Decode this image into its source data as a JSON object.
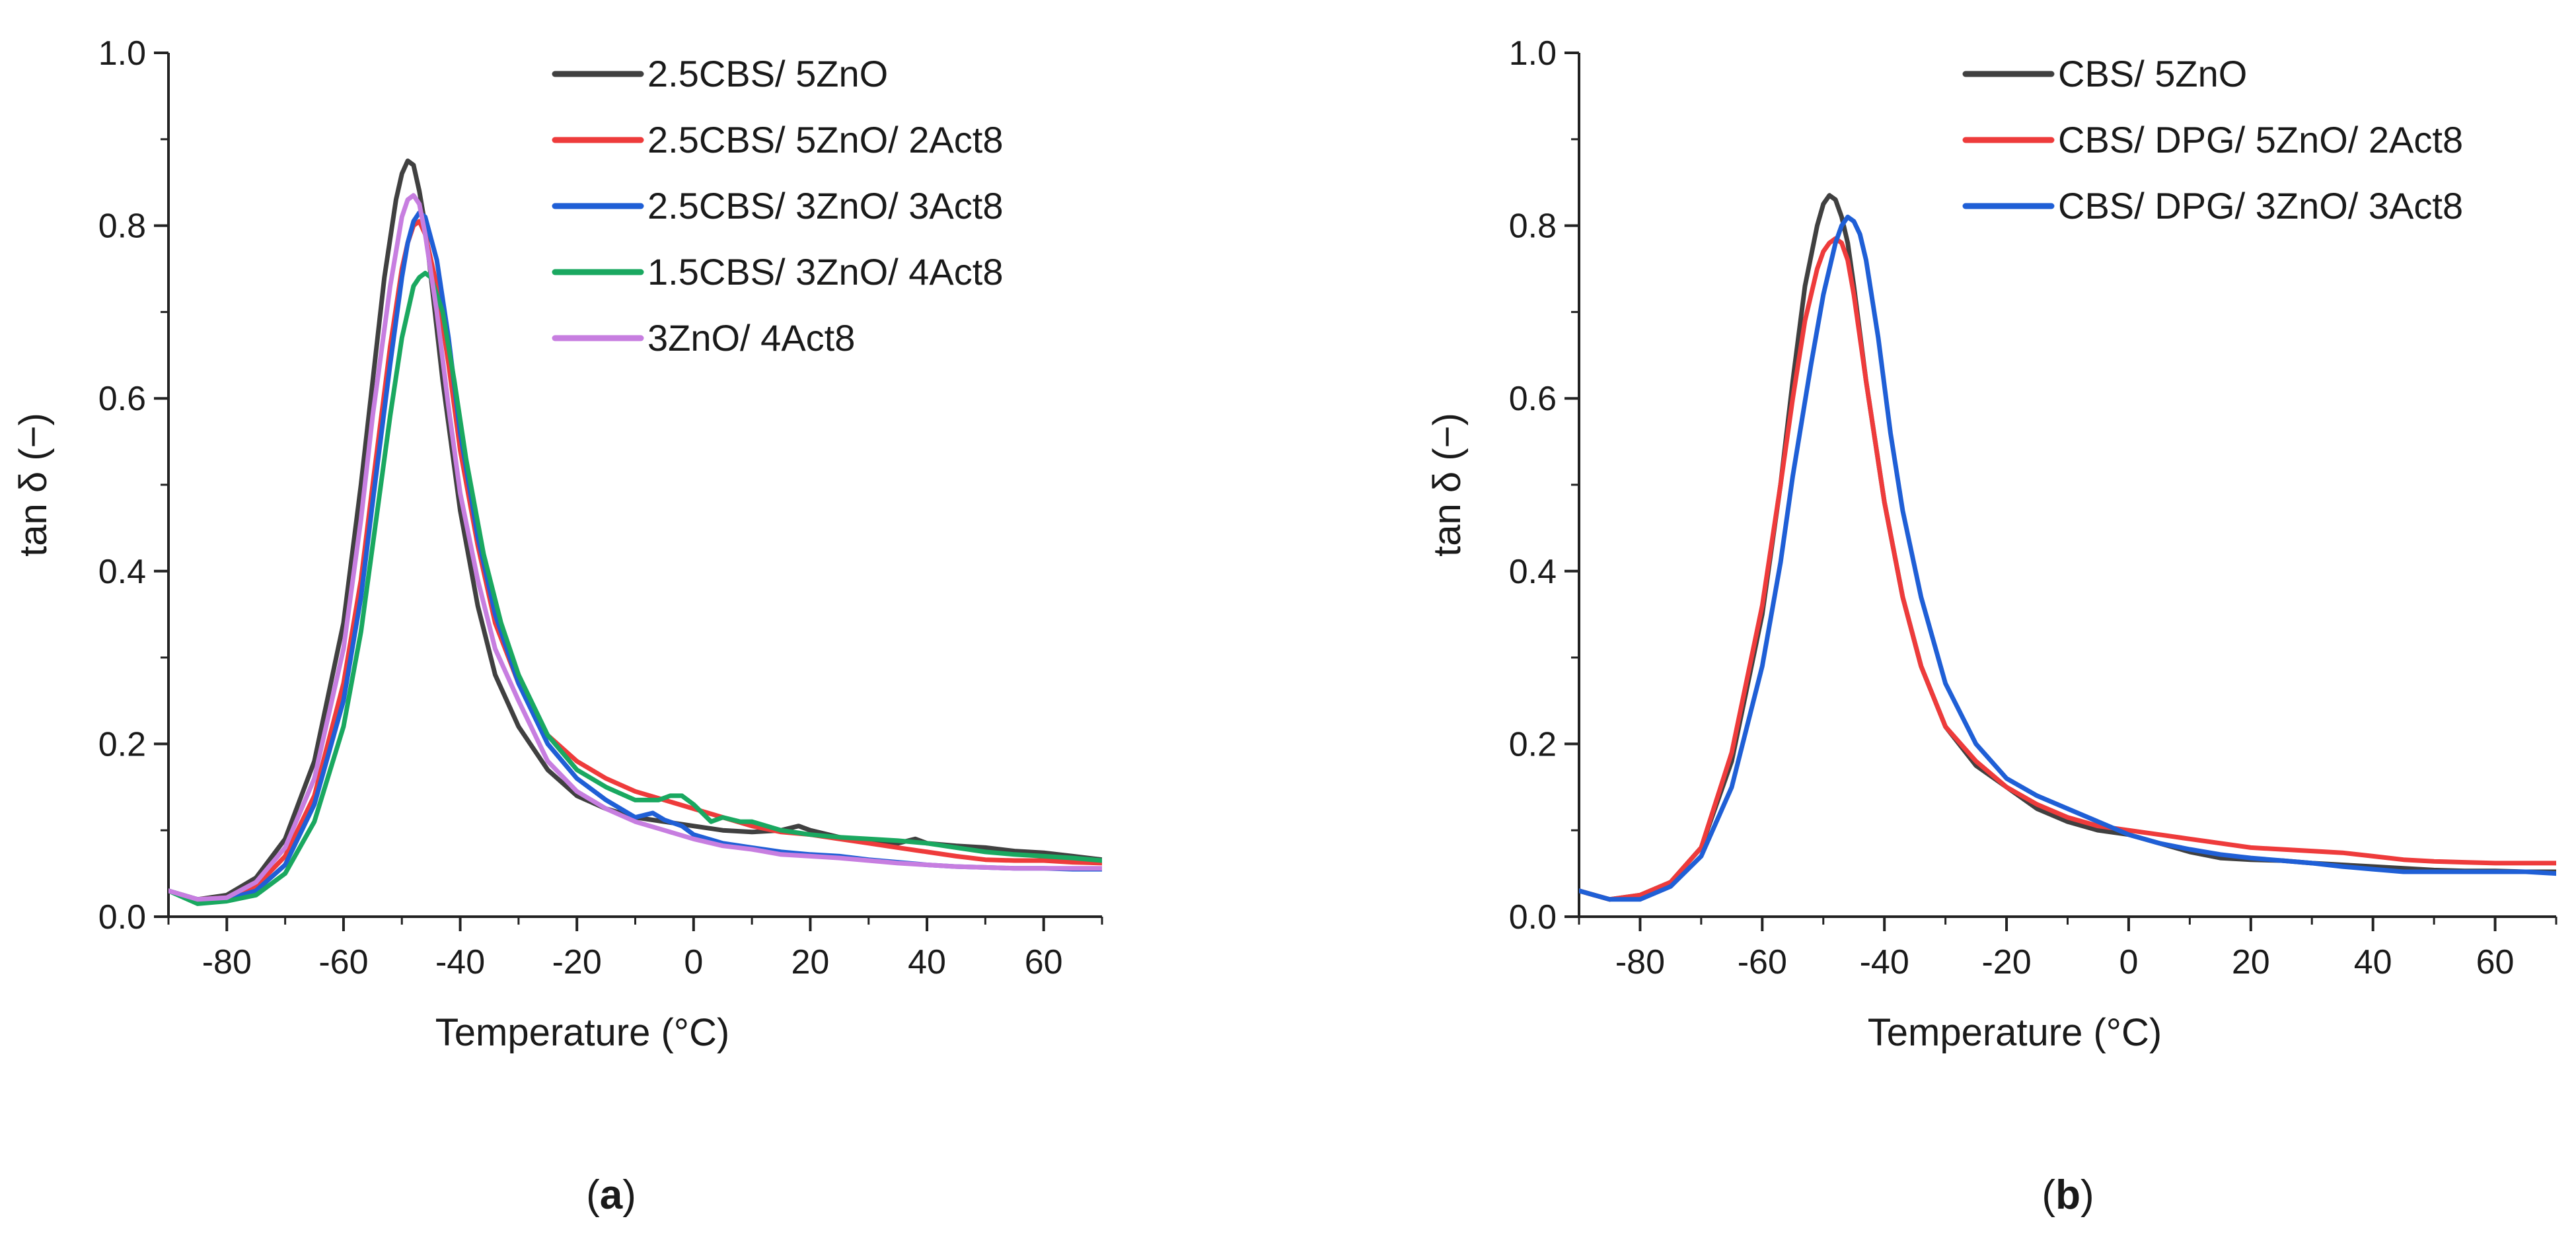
{
  "chart_data": [
    {
      "type": "line",
      "panel_label": "(a)",
      "panel_letter": "a",
      "xlabel": "Temperature (°C)",
      "ylabel": "tan δ (−)",
      "xlim": [
        -90,
        70
      ],
      "ylim": [
        0.0,
        1.0
      ],
      "xticks": [
        -80,
        -60,
        -40,
        -20,
        0,
        20,
        40,
        60
      ],
      "xtick_labels": [
        "-80",
        "-60",
        "-40",
        "-20",
        "0",
        "20",
        "40",
        "60"
      ],
      "yticks": [
        0.0,
        0.2,
        0.4,
        0.6,
        0.8,
        1.0
      ],
      "ytick_labels": [
        "0.0",
        "0.2",
        "0.4",
        "0.6",
        "0.8",
        "1.0"
      ],
      "legend_position": "top-right",
      "series": [
        {
          "name": "2.5CBS/ 5ZnO",
          "color": "#404040",
          "x": [
            -90,
            -85,
            -80,
            -75,
            -70,
            -65,
            -60,
            -57,
            -55,
            -53,
            -51,
            -50,
            -49,
            -48,
            -47,
            -46,
            -45,
            -43,
            -40,
            -37,
            -34,
            -30,
            -25,
            -20,
            -15,
            -10,
            -5,
            0,
            5,
            10,
            15,
            18,
            20,
            25,
            30,
            35,
            38,
            40,
            45,
            50,
            55,
            60,
            65,
            70
          ],
          "y": [
            0.03,
            0.02,
            0.025,
            0.045,
            0.09,
            0.18,
            0.34,
            0.5,
            0.62,
            0.74,
            0.83,
            0.86,
            0.875,
            0.87,
            0.84,
            0.8,
            0.74,
            0.62,
            0.47,
            0.36,
            0.28,
            0.22,
            0.17,
            0.14,
            0.125,
            0.115,
            0.11,
            0.105,
            0.1,
            0.098,
            0.1,
            0.105,
            0.1,
            0.092,
            0.088,
            0.085,
            0.09,
            0.085,
            0.082,
            0.08,
            0.076,
            0.074,
            0.07,
            0.066
          ]
        },
        {
          "name": "2.5CBS/ 5ZnO/ 2Act8",
          "color": "#ee3b3b",
          "x": [
            -90,
            -85,
            -80,
            -75,
            -70,
            -65,
            -60,
            -57,
            -55,
            -52,
            -50,
            -49,
            -48,
            -47,
            -46,
            -44,
            -42,
            -40,
            -37,
            -34,
            -30,
            -25,
            -20,
            -15,
            -10,
            -5,
            0,
            5,
            10,
            15,
            20,
            25,
            30,
            35,
            40,
            45,
            50,
            55,
            60,
            65,
            70
          ],
          "y": [
            0.03,
            0.02,
            0.022,
            0.035,
            0.07,
            0.14,
            0.27,
            0.39,
            0.5,
            0.66,
            0.75,
            0.78,
            0.8,
            0.805,
            0.79,
            0.73,
            0.64,
            0.54,
            0.43,
            0.34,
            0.27,
            0.21,
            0.18,
            0.16,
            0.145,
            0.135,
            0.125,
            0.115,
            0.105,
            0.098,
            0.095,
            0.09,
            0.085,
            0.08,
            0.075,
            0.07,
            0.066,
            0.065,
            0.065,
            0.063,
            0.062
          ]
        },
        {
          "name": "2.5CBS/ 3ZnO/ 3Act8",
          "color": "#1f5fd6",
          "x": [
            -90,
            -85,
            -80,
            -75,
            -70,
            -65,
            -60,
            -57,
            -55,
            -52,
            -50,
            -49,
            -48,
            -47,
            -46,
            -44,
            -42,
            -40,
            -37,
            -34,
            -30,
            -25,
            -20,
            -15,
            -10,
            -7,
            -5,
            -2,
            0,
            5,
            10,
            15,
            20,
            25,
            30,
            35,
            40,
            45,
            50,
            55,
            60,
            65,
            70
          ],
          "y": [
            0.03,
            0.02,
            0.02,
            0.03,
            0.06,
            0.13,
            0.25,
            0.37,
            0.48,
            0.64,
            0.74,
            0.78,
            0.805,
            0.815,
            0.81,
            0.76,
            0.67,
            0.56,
            0.44,
            0.35,
            0.27,
            0.2,
            0.16,
            0.135,
            0.115,
            0.12,
            0.112,
            0.105,
            0.095,
            0.085,
            0.08,
            0.075,
            0.072,
            0.07,
            0.066,
            0.063,
            0.06,
            0.058,
            0.057,
            0.056,
            0.056,
            0.055,
            0.055
          ]
        },
        {
          "name": "1.5CBS/ 3ZnO/ 4Act8",
          "color": "#1aa860",
          "x": [
            -90,
            -85,
            -80,
            -75,
            -70,
            -65,
            -60,
            -57,
            -55,
            -52,
            -50,
            -48,
            -47,
            -46,
            -45,
            -43,
            -41,
            -39,
            -36,
            -33,
            -30,
            -25,
            -20,
            -15,
            -10,
            -6,
            -4,
            -2,
            0,
            3,
            5,
            8,
            10,
            15,
            20,
            25,
            30,
            35,
            40,
            45,
            50,
            55,
            60,
            65,
            70
          ],
          "y": [
            0.03,
            0.015,
            0.018,
            0.025,
            0.05,
            0.11,
            0.22,
            0.33,
            0.43,
            0.58,
            0.67,
            0.73,
            0.74,
            0.745,
            0.74,
            0.7,
            0.62,
            0.53,
            0.42,
            0.34,
            0.28,
            0.21,
            0.17,
            0.15,
            0.135,
            0.135,
            0.14,
            0.14,
            0.13,
            0.11,
            0.115,
            0.11,
            0.11,
            0.1,
            0.095,
            0.092,
            0.09,
            0.088,
            0.085,
            0.08,
            0.075,
            0.072,
            0.07,
            0.068,
            0.065
          ]
        },
        {
          "name": "3ZnO/ 4Act8",
          "color": "#c77ee0",
          "x": [
            -90,
            -85,
            -80,
            -75,
            -70,
            -65,
            -60,
            -57,
            -55,
            -52,
            -50,
            -49,
            -48,
            -47,
            -46,
            -44,
            -42,
            -40,
            -37,
            -34,
            -30,
            -25,
            -20,
            -15,
            -10,
            -5,
            0,
            5,
            10,
            15,
            20,
            25,
            30,
            35,
            40,
            45,
            50,
            55,
            60,
            65,
            70
          ],
          "y": [
            0.03,
            0.02,
            0.022,
            0.04,
            0.08,
            0.16,
            0.31,
            0.46,
            0.58,
            0.73,
            0.81,
            0.83,
            0.835,
            0.825,
            0.79,
            0.7,
            0.59,
            0.49,
            0.39,
            0.31,
            0.25,
            0.18,
            0.145,
            0.125,
            0.11,
            0.1,
            0.09,
            0.082,
            0.078,
            0.072,
            0.07,
            0.068,
            0.065,
            0.062,
            0.06,
            0.058,
            0.057,
            0.056,
            0.056,
            0.056,
            0.056
          ]
        }
      ]
    },
    {
      "type": "line",
      "panel_label": "(b)",
      "panel_letter": "b",
      "xlabel": "Temperature (°C)",
      "ylabel": "tan δ (−)",
      "xlim": [
        -90,
        70
      ],
      "ylim": [
        0.0,
        1.0
      ],
      "xticks": [
        -80,
        -60,
        -40,
        -20,
        0,
        20,
        40,
        60
      ],
      "xtick_labels": [
        "-80",
        "-60",
        "-40",
        "-20",
        "0",
        "20",
        "40",
        "60"
      ],
      "yticks": [
        0.0,
        0.2,
        0.4,
        0.6,
        0.8,
        1.0
      ],
      "ytick_labels": [
        "0.0",
        "0.2",
        "0.4",
        "0.6",
        "0.8",
        "1.0"
      ],
      "legend_position": "top-right",
      "series": [
        {
          "name": "CBS/ 5ZnO",
          "color": "#404040",
          "x": [
            -90,
            -85,
            -80,
            -75,
            -70,
            -65,
            -60,
            -57,
            -55,
            -53,
            -51,
            -50,
            -49,
            -48,
            -47,
            -46,
            -45,
            -43,
            -40,
            -37,
            -34,
            -30,
            -25,
            -20,
            -15,
            -10,
            -5,
            0,
            5,
            10,
            15,
            20,
            25,
            30,
            35,
            40,
            45,
            50,
            55,
            60,
            65,
            70
          ],
          "y": [
            0.03,
            0.02,
            0.025,
            0.04,
            0.08,
            0.18,
            0.35,
            0.5,
            0.62,
            0.73,
            0.8,
            0.825,
            0.835,
            0.83,
            0.81,
            0.78,
            0.73,
            0.62,
            0.48,
            0.37,
            0.29,
            0.22,
            0.175,
            0.15,
            0.125,
            0.11,
            0.1,
            0.095,
            0.085,
            0.075,
            0.068,
            0.066,
            0.065,
            0.062,
            0.06,
            0.058,
            0.056,
            0.054,
            0.053,
            0.053,
            0.052,
            0.052
          ]
        },
        {
          "name": "CBS/ DPG/ 5ZnO/ 2Act8",
          "color": "#ee3b3b",
          "x": [
            -90,
            -85,
            -80,
            -75,
            -70,
            -65,
            -60,
            -57,
            -55,
            -53,
            -51,
            -50,
            -49,
            -48,
            -47,
            -46,
            -45,
            -43,
            -40,
            -37,
            -34,
            -30,
            -25,
            -20,
            -15,
            -10,
            -5,
            0,
            5,
            10,
            15,
            20,
            25,
            30,
            35,
            40,
            45,
            50,
            55,
            60,
            65,
            70
          ],
          "y": [
            0.03,
            0.02,
            0.025,
            0.04,
            0.08,
            0.19,
            0.36,
            0.5,
            0.6,
            0.69,
            0.75,
            0.77,
            0.78,
            0.785,
            0.78,
            0.76,
            0.72,
            0.62,
            0.48,
            0.37,
            0.29,
            0.22,
            0.18,
            0.15,
            0.13,
            0.115,
            0.105,
            0.1,
            0.095,
            0.09,
            0.085,
            0.08,
            0.078,
            0.076,
            0.074,
            0.07,
            0.066,
            0.064,
            0.063,
            0.062,
            0.062,
            0.062
          ]
        },
        {
          "name": "CBS/ DPG/ 3ZnO/ 3Act8",
          "color": "#1f5fd6",
          "x": [
            -90,
            -85,
            -80,
            -75,
            -70,
            -65,
            -60,
            -57,
            -55,
            -52,
            -50,
            -48,
            -47,
            -46,
            -45,
            -44,
            -43,
            -41,
            -39,
            -37,
            -34,
            -30,
            -25,
            -20,
            -15,
            -10,
            -5,
            0,
            5,
            10,
            15,
            20,
            25,
            30,
            35,
            40,
            45,
            50,
            55,
            60,
            65,
            70
          ],
          "y": [
            0.03,
            0.02,
            0.02,
            0.035,
            0.07,
            0.15,
            0.29,
            0.41,
            0.51,
            0.64,
            0.72,
            0.78,
            0.8,
            0.81,
            0.805,
            0.79,
            0.76,
            0.67,
            0.56,
            0.47,
            0.37,
            0.27,
            0.2,
            0.16,
            0.14,
            0.125,
            0.11,
            0.095,
            0.085,
            0.078,
            0.072,
            0.068,
            0.065,
            0.062,
            0.058,
            0.055,
            0.052,
            0.052,
            0.052,
            0.052,
            0.052,
            0.05
          ]
        }
      ]
    }
  ]
}
